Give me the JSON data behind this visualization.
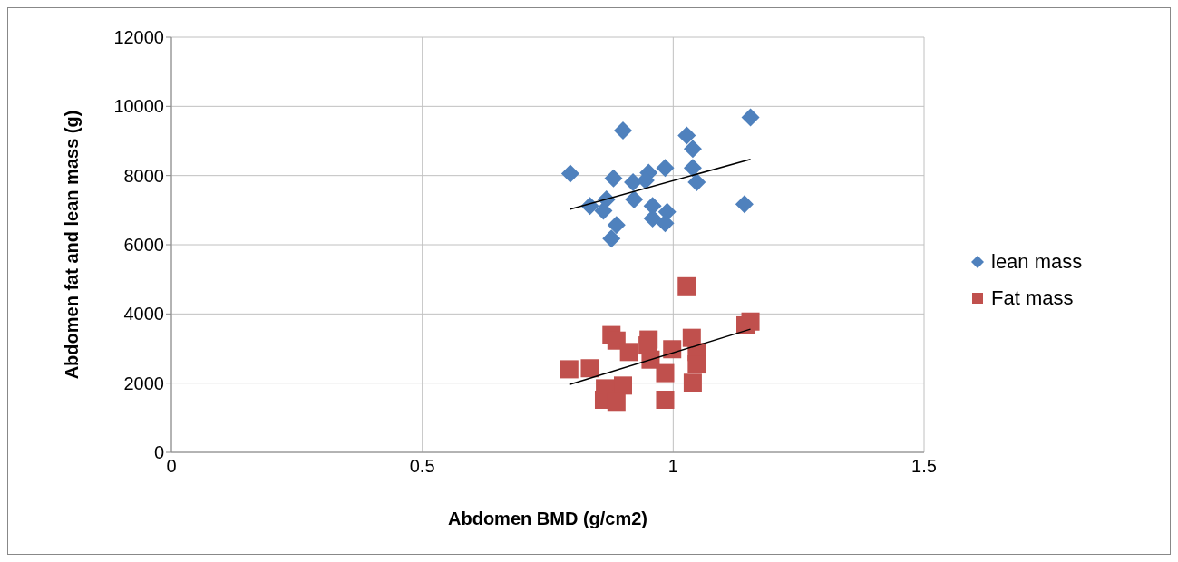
{
  "chart_data": {
    "type": "scatter",
    "xlabel": "Abdomen BMD (g/cm2)",
    "ylabel": "Abdomen fat and lean mass (g)",
    "xlim": [
      0,
      1.5
    ],
    "xticks": [
      0,
      0.5,
      1,
      1.5
    ],
    "ylim": [
      0,
      12000
    ],
    "yticks": [
      0,
      2000,
      4000,
      6000,
      8000,
      10000,
      12000
    ],
    "grid": true,
    "legend": "right",
    "series": [
      {
        "name": "lean mass",
        "color": "#4f81bd",
        "marker": "diamond",
        "x": [
          0.795,
          0.9,
          1.027,
          1.039,
          1.154,
          1.142,
          0.881,
          0.834,
          0.867,
          0.861,
          0.887,
          0.877,
          0.92,
          0.922,
          0.951,
          0.984,
          0.959,
          0.988,
          0.959,
          0.984,
          1.039,
          1.047,
          0.945
        ],
        "values": [
          8060,
          9300,
          9160,
          8770,
          9680,
          7170,
          7920,
          7120,
          7310,
          6980,
          6570,
          6180,
          7810,
          7310,
          8080,
          8220,
          7120,
          6950,
          6760,
          6620,
          8220,
          7810,
          7860
        ]
      },
      {
        "name": "Fat mass",
        "color": "#c0504d",
        "marker": "square",
        "x": [
          1.027,
          1.154,
          1.144,
          0.877,
          0.887,
          0.951,
          1.037,
          0.949,
          0.998,
          0.912,
          0.955,
          1.047,
          1.047,
          0.793,
          0.834,
          0.984,
          1.039,
          0.9,
          0.864,
          0.862,
          0.887,
          0.984
        ],
        "values": [
          4800,
          3780,
          3670,
          3390,
          3230,
          3260,
          3310,
          3090,
          2980,
          2900,
          2680,
          2900,
          2540,
          2400,
          2430,
          2290,
          2010,
          1930,
          1850,
          1520,
          1460,
          1520
        ]
      },
      {
        "type": "line",
        "color": "#000000",
        "x": [
          0.795,
          1.154
        ],
        "values": [
          7030,
          8470
        ]
      },
      {
        "type": "line",
        "color": "#000000",
        "x": [
          0.793,
          1.154
        ],
        "values": [
          1960,
          3560
        ]
      }
    ]
  }
}
